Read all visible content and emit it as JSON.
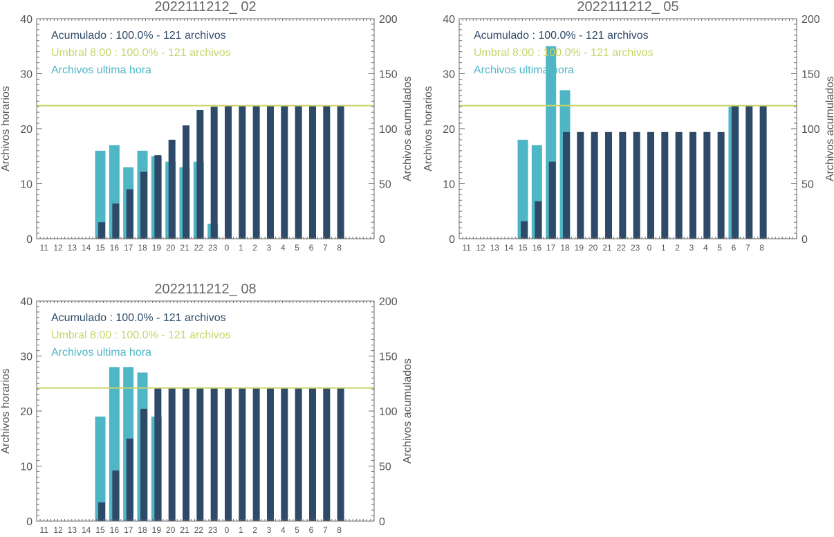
{
  "colors": {
    "hourly": "#4fb6c6",
    "cumulative": "#2e4a68",
    "threshold": "#c8d46a",
    "axis": "#6a6a6a",
    "text": "#555555"
  },
  "chart_data": [
    {
      "type": "bar",
      "title": "2022111212_ 02",
      "ylabel_left": "Archivos horarios",
      "ylabel_right": "Archivos acumulados",
      "ylim_left": [
        0,
        40
      ],
      "ylim_right": [
        0,
        200
      ],
      "yticks_left": [
        "0",
        "10",
        "20",
        "30",
        "40"
      ],
      "yticks_right": [
        "0",
        "50",
        "100",
        "150",
        "200"
      ],
      "categories": [
        "11",
        "12",
        "13",
        "14",
        "15",
        "16",
        "17",
        "18",
        "19",
        "20",
        "21",
        "22",
        "23",
        "0",
        "1",
        "2",
        "3",
        "4",
        "5",
        "6",
        "7",
        "8"
      ],
      "legend": [
        {
          "key": "cumulative",
          "text": "Acumulado : 100.0% - 121 archivos"
        },
        {
          "key": "threshold",
          "text": "Umbral 8:00 : 100.0% - 121 archivos"
        },
        {
          "key": "hourly",
          "text": "Archivos ultima hora"
        }
      ],
      "series": [
        {
          "name": "Archivos ultima hora",
          "axis": "left",
          "values": [
            0,
            0,
            0,
            0,
            16,
            17,
            13,
            16,
            15,
            14,
            13,
            14,
            2.7,
            0,
            0,
            0,
            0,
            0,
            0,
            0,
            0,
            0
          ]
        },
        {
          "name": "Acumulado",
          "axis": "right",
          "values": [
            0,
            0,
            0,
            0,
            15,
            32,
            45,
            61,
            76,
            90,
            103,
            117,
            120,
            121,
            121,
            121,
            121,
            121,
            121,
            121,
            121,
            121
          ]
        }
      ],
      "threshold_right": 121
    },
    {
      "type": "bar",
      "title": "2022111212_ 05",
      "ylabel_left": "Archivos horarios",
      "ylabel_right": "Archivos acumulados",
      "ylim_left": [
        0,
        40
      ],
      "ylim_right": [
        0,
        200
      ],
      "yticks_left": [
        "0",
        "10",
        "20",
        "30",
        "40"
      ],
      "yticks_right": [
        "0",
        "50",
        "100",
        "150",
        "200"
      ],
      "categories": [
        "11",
        "12",
        "13",
        "14",
        "15",
        "16",
        "17",
        "18",
        "19",
        "20",
        "21",
        "22",
        "23",
        "0",
        "1",
        "2",
        "3",
        "4",
        "5",
        "6",
        "7",
        "8"
      ],
      "legend": [
        {
          "key": "cumulative",
          "text": "Acumulado : 100.0% - 121 archivos"
        },
        {
          "key": "threshold",
          "text": "Umbral 8:00 : 100.0% - 121 archivos"
        },
        {
          "key": "hourly",
          "text": "Archivos ultima hora"
        }
      ],
      "series": [
        {
          "name": "Archivos ultima hora",
          "axis": "left",
          "values": [
            0,
            0,
            0,
            0,
            18,
            17,
            35,
            27,
            0,
            0,
            0,
            0,
            0,
            0,
            0,
            0,
            0,
            0,
            0,
            24,
            0,
            0
          ]
        },
        {
          "name": "Acumulado",
          "axis": "right",
          "values": [
            0,
            0,
            0,
            0,
            16,
            34,
            70,
            97,
            97,
            97,
            97,
            97,
            97,
            97,
            97,
            97,
            97,
            97,
            97,
            121,
            121,
            121
          ]
        }
      ],
      "threshold_right": 121
    },
    {
      "type": "bar",
      "title": "2022111212_ 08",
      "ylabel_left": "Archivos horarios",
      "ylabel_right": "Archivos acumulados",
      "ylim_left": [
        0,
        40
      ],
      "ylim_right": [
        0,
        200
      ],
      "yticks_left": [
        "0",
        "10",
        "20",
        "30",
        "40"
      ],
      "yticks_right": [
        "0",
        "50",
        "100",
        "150",
        "200"
      ],
      "categories": [
        "11",
        "12",
        "13",
        "14",
        "15",
        "16",
        "17",
        "18",
        "19",
        "20",
        "21",
        "22",
        "23",
        "0",
        "1",
        "2",
        "3",
        "4",
        "5",
        "6",
        "7",
        "8"
      ],
      "legend": [
        {
          "key": "cumulative",
          "text": "Acumulado : 100.0% - 121 archivos"
        },
        {
          "key": "threshold",
          "text": "Umbral 8:00 : 100.0% - 121 archivos"
        },
        {
          "key": "hourly",
          "text": "Archivos ultima hora"
        }
      ],
      "series": [
        {
          "name": "Archivos ultima hora",
          "axis": "left",
          "values": [
            0,
            0,
            0,
            0,
            19,
            28,
            28,
            27,
            19,
            0,
            0,
            0,
            0,
            0,
            0,
            0,
            0,
            0,
            0,
            0,
            0,
            0
          ]
        },
        {
          "name": "Acumulado",
          "axis": "right",
          "values": [
            0,
            0,
            0,
            0,
            17,
            46,
            75,
            102,
            121,
            121,
            121,
            121,
            121,
            121,
            121,
            121,
            121,
            121,
            121,
            121,
            121,
            121
          ]
        }
      ],
      "threshold_right": 121
    }
  ]
}
